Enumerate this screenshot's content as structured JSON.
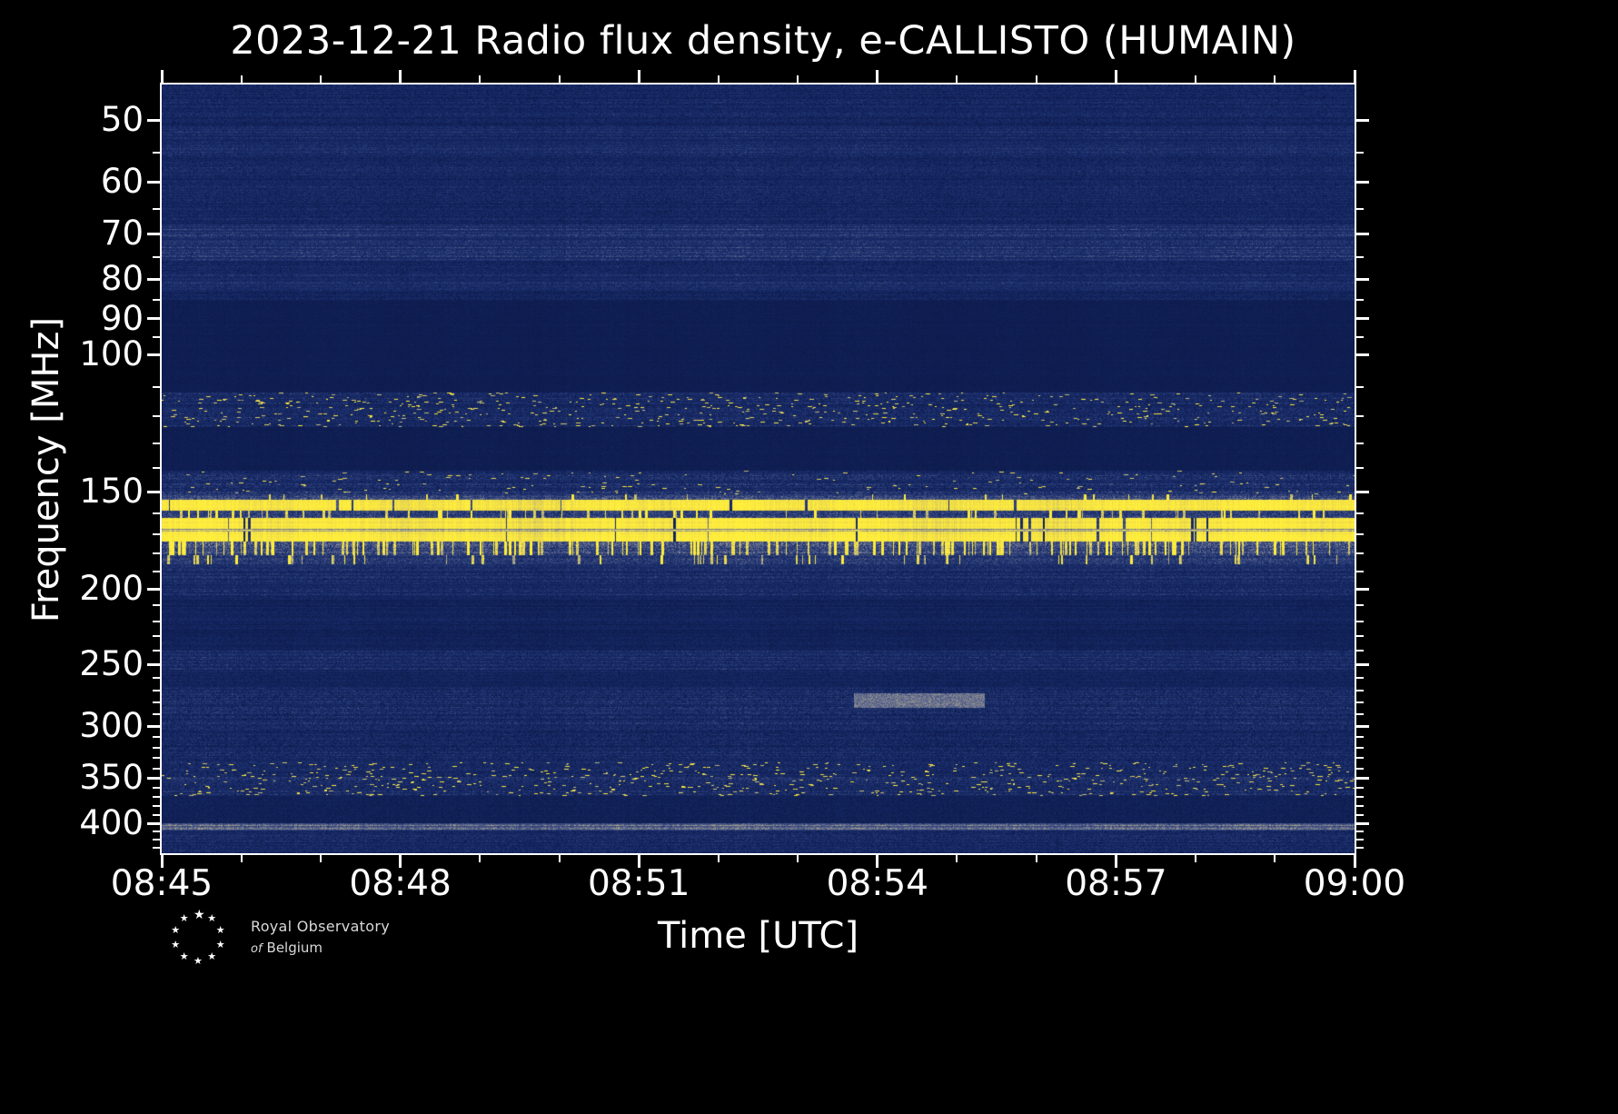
{
  "chart_data": {
    "type": "heatmap",
    "title": "2023-12-21 Radio flux density, e-CALLISTO (HUMAIN)",
    "xlabel": "Time [UTC]",
    "ylabel": "Frequency [MHz]",
    "x_ticks": [
      "08:45",
      "08:48",
      "08:51",
      "08:54",
      "08:57",
      "09:00"
    ],
    "x_minor_interval_minutes": 1,
    "x_range_minutes": 15,
    "time_start": "08:45",
    "time_end": "09:00",
    "y_ticks": [
      50,
      60,
      70,
      80,
      90,
      100,
      150,
      200,
      250,
      300,
      350,
      400
    ],
    "y_minor_ticks": [
      55,
      65,
      75,
      85,
      95,
      110,
      120,
      130,
      140,
      160,
      170,
      180,
      190,
      210,
      220,
      230,
      240,
      260,
      270,
      280,
      290,
      310,
      320,
      330,
      340,
      360,
      370,
      380,
      390,
      410,
      420,
      430
    ],
    "f_min": 45,
    "f_max": 437,
    "yscale": "log",
    "y_inverted": true,
    "grid": false,
    "legend": "none",
    "background": "#000000",
    "base_color": "#16296b",
    "bright_color": "#ffee3c",
    "colormap": [
      [
        0.0,
        "#0a1642"
      ],
      [
        0.1,
        "#14255f"
      ],
      [
        0.22,
        "#1d316f"
      ],
      [
        0.35,
        "#3a4a7e"
      ],
      [
        0.5,
        "#6b7290"
      ],
      [
        0.62,
        "#98988f"
      ],
      [
        0.74,
        "#c5bb72"
      ],
      [
        0.85,
        "#ecd94b"
      ],
      [
        1.0,
        "#ffee3c"
      ]
    ],
    "bands": [
      {
        "f1": 45,
        "f2": 85,
        "base": 0.13,
        "noise": 0.09,
        "style": "noise",
        "label": "broadband blue noise 45-85 MHz"
      },
      {
        "f1": 51,
        "f2": 55,
        "base": 0.17,
        "noise": 0.1,
        "style": "noise",
        "label": "lighter striation near 53 MHz"
      },
      {
        "f1": 68,
        "f2": 76,
        "base": 0.21,
        "noise": 0.11,
        "style": "noise",
        "label": "bright grey band near 70-75 MHz"
      },
      {
        "f1": 79,
        "f2": 83,
        "base": 0.17,
        "noise": 0.1,
        "style": "noise",
        "label": "lighter striation near 80 MHz"
      },
      {
        "f1": 85,
        "f2": 112,
        "base": 0.055,
        "noise": 0.02,
        "style": "flat",
        "label": "quiet dark band 85-112 MHz"
      },
      {
        "f1": 112,
        "f2": 124,
        "base": 0.15,
        "noise": 0.11,
        "speckle": 0.012,
        "style": "speckle",
        "label": "speckled interference band ~115-125 MHz"
      },
      {
        "f1": 124,
        "f2": 141,
        "base": 0.055,
        "noise": 0.02,
        "style": "flat",
        "label": "quiet dark band"
      },
      {
        "f1": 141,
        "f2": 151,
        "base": 0.18,
        "noise": 0.13,
        "speckle": 0.004,
        "style": "speckle",
        "label": "noisy band ~145 MHz"
      },
      {
        "f1": 151,
        "f2": 153.5,
        "base": 0.32,
        "noise": 0.15,
        "vstreak": 0.02,
        "style": "streak"
      },
      {
        "f1": 153.5,
        "f2": 158.5,
        "base": 0.93,
        "noise": 0.05,
        "gap": 0.007,
        "style": "line",
        "label": "saturated RFI line ~155 MHz"
      },
      {
        "f1": 158.5,
        "f2": 162,
        "base": 0.3,
        "noise": 0.17,
        "vstreak": 0.06,
        "style": "streak"
      },
      {
        "f1": 162,
        "f2": 174,
        "base": 0.95,
        "noise": 0.04,
        "gap": 0.012,
        "style": "line",
        "label": "saturated RFI band ~165-172 MHz"
      },
      {
        "f1": 167.3,
        "f2": 168.8,
        "base": 0.62,
        "noise": 0.1,
        "style": "noise",
        "label": "darker lane inside RFI band"
      },
      {
        "f1": 174,
        "f2": 181,
        "base": 0.34,
        "noise": 0.18,
        "vstreak": 0.13,
        "style": "streak",
        "label": "dense yellow streaks ~175-180 MHz"
      },
      {
        "f1": 181,
        "f2": 186,
        "base": 0.24,
        "noise": 0.13,
        "vstreak": 0.04,
        "style": "streak"
      },
      {
        "f1": 186,
        "f2": 205,
        "base": 0.16,
        "noise": 0.1,
        "style": "noise",
        "label": "noisy band ~190-205 MHz"
      },
      {
        "f1": 205,
        "f2": 240,
        "base": 0.09,
        "noise": 0.05,
        "style": "noise",
        "label": "faint band"
      },
      {
        "f1": 240,
        "f2": 254,
        "base": 0.17,
        "noise": 0.11,
        "style": "noise",
        "label": "noisy band ~250 MHz"
      },
      {
        "f1": 254,
        "f2": 268,
        "base": 0.1,
        "noise": 0.06,
        "style": "noise"
      },
      {
        "f1": 268,
        "f2": 300,
        "base": 0.15,
        "noise": 0.11,
        "style": "noise",
        "label": "noisy band ~270-300 MHz"
      },
      {
        "f1": 300,
        "f2": 334,
        "base": 0.13,
        "noise": 0.1,
        "style": "noise"
      },
      {
        "f1": 334,
        "f2": 369,
        "base": 0.16,
        "noise": 0.12,
        "speckle": 0.014,
        "style": "speckle",
        "label": "yellow-speckled band ~340-365 MHz"
      },
      {
        "f1": 369,
        "f2": 400,
        "base": 0.075,
        "noise": 0.04,
        "style": "flat",
        "label": "quiet dark band"
      },
      {
        "f1": 400,
        "f2": 409,
        "base": 0.48,
        "noise": 0.14,
        "style": "noise",
        "label": "thin whitish line ~405 MHz"
      },
      {
        "f1": 409,
        "f2": 437,
        "base": 0.14,
        "noise": 0.1,
        "style": "noise",
        "label": "bottom noise band"
      }
    ],
    "features": [
      {
        "t1": 0.58,
        "t2": 0.69,
        "f1": 272,
        "f2": 284,
        "value": 0.5,
        "label": "olive smudge near 08:54 at ~280 MHz"
      }
    ]
  },
  "logo": {
    "line1": "Royal Observatory",
    "line2_italic": "of",
    "line2": "Belgium"
  }
}
